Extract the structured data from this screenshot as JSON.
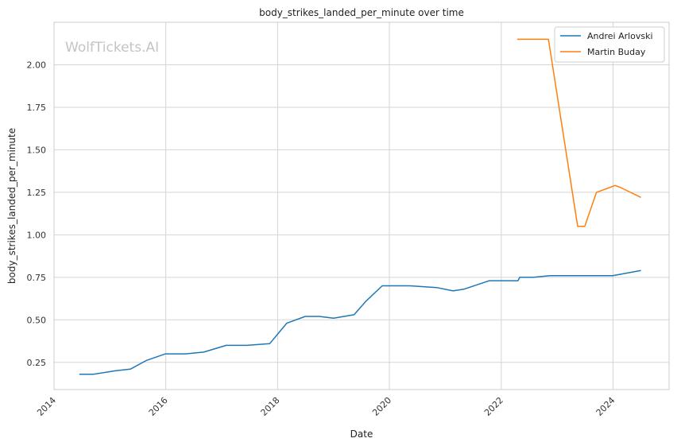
{
  "chart_data": {
    "type": "line",
    "title": "body_strikes_landed_per_minute over time",
    "xlabel": "Date",
    "ylabel": "body_strikes_landed_per_minute",
    "watermark": "WolfTickets.AI",
    "x_ticks": [
      "2014",
      "2016",
      "2018",
      "2020",
      "2022",
      "2024"
    ],
    "y_ticks": [
      "0.25",
      "0.50",
      "0.75",
      "1.00",
      "1.25",
      "1.50",
      "1.75",
      "2.00"
    ],
    "xlim": [
      "2014-01-01",
      "2025-01-01"
    ],
    "ylim": [
      0.09,
      2.25
    ],
    "grid": true,
    "legend_position": "top-right",
    "colors": {
      "Andrei Arlovski": "#1f77b4",
      "Martin Buday": "#ff7f0e"
    },
    "series": [
      {
        "name": "Andrei Arlovski",
        "points": [
          [
            "2014-06-15",
            0.18
          ],
          [
            "2014-09-15",
            0.18
          ],
          [
            "2015-02-01",
            0.2
          ],
          [
            "2015-05-15",
            0.21
          ],
          [
            "2015-08-25",
            0.26
          ],
          [
            "2015-12-30",
            0.3
          ],
          [
            "2016-05-10",
            0.3
          ],
          [
            "2016-09-05",
            0.31
          ],
          [
            "2017-01-30",
            0.35
          ],
          [
            "2017-06-15",
            0.35
          ],
          [
            "2017-11-10",
            0.36
          ],
          [
            "2018-03-01",
            0.48
          ],
          [
            "2018-06-30",
            0.52
          ],
          [
            "2018-09-30",
            0.52
          ],
          [
            "2019-01-01",
            0.51
          ],
          [
            "2019-05-15",
            0.53
          ],
          [
            "2019-08-01",
            0.61
          ],
          [
            "2019-11-15",
            0.7
          ],
          [
            "2020-05-15",
            0.7
          ],
          [
            "2020-11-05",
            0.69
          ],
          [
            "2021-02-20",
            0.67
          ],
          [
            "2021-05-01",
            0.68
          ],
          [
            "2021-10-15",
            0.73
          ],
          [
            "2022-04-20",
            0.73
          ],
          [
            "2022-05-01",
            0.75
          ],
          [
            "2022-08-01",
            0.75
          ],
          [
            "2022-11-15",
            0.76
          ],
          [
            "2023-05-01",
            0.76
          ],
          [
            "2023-06-01",
            0.76
          ],
          [
            "2023-12-30",
            0.76
          ],
          [
            "2024-07-01",
            0.79
          ]
        ]
      },
      {
        "name": "Martin Buday",
        "points": [
          [
            "2022-04-15",
            2.15
          ],
          [
            "2022-11-05",
            2.15
          ],
          [
            "2023-05-15",
            1.05
          ],
          [
            "2023-06-30",
            1.05
          ],
          [
            "2023-09-15",
            1.25
          ],
          [
            "2024-01-15",
            1.29
          ],
          [
            "2024-02-15",
            1.28
          ],
          [
            "2024-07-01",
            1.22
          ]
        ]
      }
    ]
  }
}
